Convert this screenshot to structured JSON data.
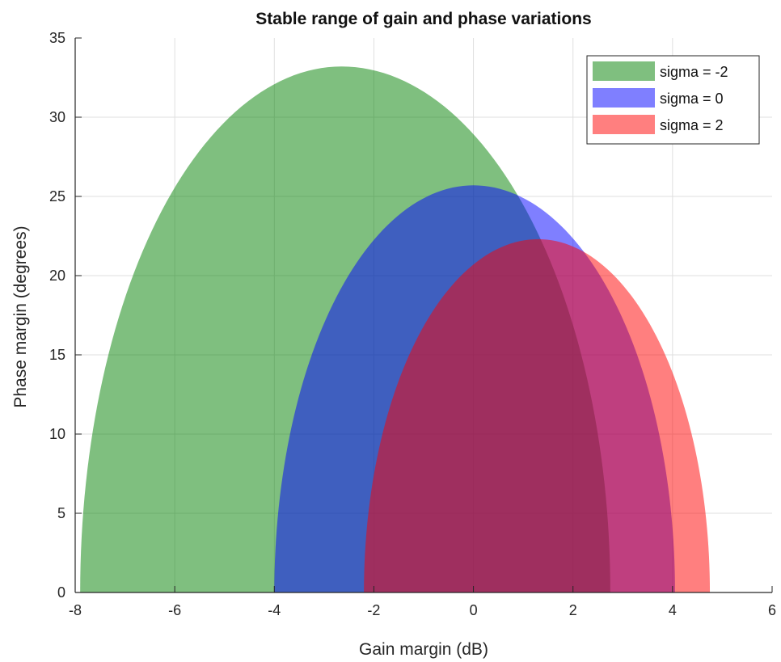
{
  "chart_data": {
    "type": "area",
    "title": "Stable range of gain and phase variations",
    "xlabel": "Gain margin (dB)",
    "ylabel": "Phase margin (degrees)",
    "xlim": [
      -8,
      6
    ],
    "ylim": [
      0,
      35
    ],
    "xticks": [
      -8,
      -6,
      -4,
      -2,
      0,
      2,
      4,
      6
    ],
    "yticks": [
      0,
      5,
      10,
      15,
      20,
      25,
      30,
      35
    ],
    "xtick_labels": [
      "-8",
      "-6",
      "-4",
      "-2",
      "0",
      "2",
      "4",
      "6"
    ],
    "ytick_labels": [
      "0",
      "5",
      "10",
      "15",
      "20",
      "25",
      "30",
      "35"
    ],
    "grid": true,
    "legend_position": "top-right",
    "series": [
      {
        "name": "sigma = -2",
        "color": "#008000",
        "alpha": 0.5,
        "x_min": -7.9,
        "x_max": 2.75,
        "x_peak": -2.65,
        "y_peak": 33.2
      },
      {
        "name": "sigma = 0",
        "color": "#0000FF",
        "alpha": 0.5,
        "x_min": -4.0,
        "x_max": 4.05,
        "x_peak": 0.0,
        "y_peak": 25.7
      },
      {
        "name": "sigma = 2",
        "color": "#FF0000",
        "alpha": 0.5,
        "x_min": -2.2,
        "x_max": 4.75,
        "x_peak": 1.3,
        "y_peak": 22.3
      }
    ]
  }
}
